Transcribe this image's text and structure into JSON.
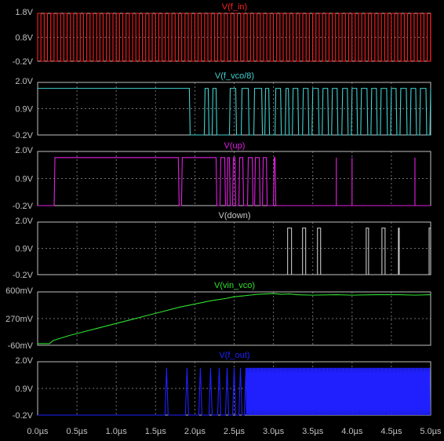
{
  "chart_data": [
    {
      "type": "line",
      "trace": "V(f_in)",
      "color": "#ff2020",
      "yticks": [
        "1.8V",
        "0.8V",
        "-0.2V"
      ],
      "ylim": [
        -0.2,
        1.8
      ],
      "waveform": "square",
      "low": -0.2,
      "high": 1.8,
      "period_us": 0.0833,
      "duty": 0.5,
      "x_range_us": [
        0.0,
        5.0
      ]
    },
    {
      "type": "line",
      "trace": "V(f_vco/8)",
      "color": "#40d0d0",
      "yticks": [
        "2.0V",
        "0.9V",
        "-0.2V"
      ],
      "ylim": [
        -0.2,
        2.0
      ],
      "low": -0.2,
      "high": 1.75,
      "transitions_us": [
        [
          0.0,
          1.75
        ],
        [
          1.93,
          -0.2
        ],
        [
          2.12,
          1.75
        ],
        [
          2.17,
          -0.2
        ],
        [
          2.22,
          1.75
        ],
        [
          2.27,
          -0.2
        ],
        [
          2.44,
          1.75
        ],
        [
          2.52,
          -0.2
        ],
        [
          2.59,
          1.75
        ],
        [
          2.68,
          -0.2
        ],
        [
          2.75,
          1.75
        ],
        [
          2.85,
          -0.2
        ],
        [
          2.89,
          1.75
        ],
        [
          2.94,
          -0.2
        ],
        [
          3.02,
          1.75
        ],
        [
          3.09,
          -0.2
        ],
        [
          3.15,
          1.75
        ],
        [
          3.19,
          -0.2
        ],
        [
          3.24,
          1.75
        ],
        [
          3.31,
          -0.2
        ],
        [
          3.37,
          1.75
        ],
        [
          3.44,
          -0.2
        ],
        [
          3.49,
          1.75
        ],
        [
          3.57,
          -0.2
        ],
        [
          3.62,
          1.75
        ],
        [
          3.69,
          -0.2
        ],
        [
          3.74,
          1.75
        ],
        [
          3.81,
          -0.2
        ],
        [
          3.87,
          1.75
        ],
        [
          3.94,
          -0.2
        ],
        [
          3.99,
          1.75
        ],
        [
          4.06,
          -0.2
        ],
        [
          4.11,
          1.75
        ],
        [
          4.19,
          -0.2
        ],
        [
          4.24,
          1.75
        ],
        [
          4.31,
          -0.2
        ],
        [
          4.36,
          1.75
        ],
        [
          4.44,
          -0.2
        ],
        [
          4.49,
          1.75
        ],
        [
          4.56,
          -0.2
        ],
        [
          4.61,
          1.75
        ],
        [
          4.69,
          -0.2
        ],
        [
          4.74,
          1.75
        ],
        [
          4.81,
          -0.2
        ],
        [
          4.86,
          1.75
        ],
        [
          4.94,
          -0.2
        ],
        [
          4.99,
          1.75
        ]
      ]
    },
    {
      "type": "line",
      "trace": "V(up)",
      "color": "#e020e0",
      "yticks": [
        "2.0V",
        "0.9V",
        "-0.2V"
      ],
      "ylim": [
        -0.2,
        2.0
      ],
      "low": -0.2,
      "high": 1.75,
      "transitions_us": [
        [
          0.0,
          -0.2
        ],
        [
          0.21,
          1.75
        ],
        [
          1.79,
          -0.2
        ],
        [
          1.83,
          1.75
        ],
        [
          2.27,
          -0.2
        ],
        [
          2.32,
          1.75
        ],
        [
          2.38,
          -0.2
        ],
        [
          2.41,
          1.75
        ],
        [
          2.44,
          -0.2
        ],
        [
          2.48,
          1.75
        ],
        [
          2.51,
          -0.2
        ],
        [
          2.56,
          1.75
        ],
        [
          2.61,
          -0.2
        ],
        [
          2.67,
          1.75
        ],
        [
          2.73,
          -0.2
        ],
        [
          2.76,
          1.75
        ],
        [
          2.82,
          -0.2
        ],
        [
          2.86,
          1.75
        ],
        [
          2.91,
          -0.2
        ],
        [
          3.0,
          1.75
        ],
        [
          3.02,
          -0.2
        ]
      ],
      "spikes_us": [
        3.8,
        4.0,
        4.8
      ]
    },
    {
      "type": "line",
      "trace": "V(down)",
      "color": "#c8c8c8",
      "yticks": [
        "2.0V",
        "0.9V",
        "-0.2V"
      ],
      "ylim": [
        -0.2,
        2.0
      ],
      "low": -0.2,
      "high": 1.75,
      "pulses_us": [
        [
          3.18,
          3.23
        ],
        [
          3.37,
          3.41
        ],
        [
          3.56,
          3.6
        ],
        [
          4.18,
          4.21
        ],
        [
          4.38,
          4.42
        ],
        [
          4.59,
          4.6
        ],
        [
          4.98,
          5.0
        ]
      ]
    },
    {
      "type": "line",
      "trace": "V(vin_vco)",
      "color": "#30e030",
      "yticks": [
        "600mV",
        "270mV",
        "-60mV"
      ],
      "ylim": [
        -0.06,
        0.6
      ],
      "unit": "V",
      "x_us": [
        0.0,
        0.15,
        0.2,
        0.4,
        0.6,
        0.8,
        1.0,
        1.2,
        1.4,
        1.6,
        1.8,
        2.0,
        2.2,
        2.4,
        2.5,
        2.6,
        2.7,
        2.8,
        2.9,
        3.0,
        3.1,
        3.2,
        3.3,
        3.5,
        3.8,
        4.0,
        4.3,
        4.6,
        4.8,
        5.0
      ],
      "y": [
        -0.04,
        -0.04,
        0.0,
        0.06,
        0.11,
        0.16,
        0.21,
        0.26,
        0.31,
        0.36,
        0.41,
        0.45,
        0.49,
        0.52,
        0.54,
        0.55,
        0.56,
        0.57,
        0.575,
        0.58,
        0.57,
        0.575,
        0.565,
        0.56,
        0.565,
        0.56,
        0.565,
        0.565,
        0.56,
        0.565
      ]
    },
    {
      "type": "line",
      "trace": "V(f_out)",
      "color": "#2020ff",
      "yticks": [
        "2.0V",
        "0.9V",
        "-0.2V"
      ],
      "ylim": [
        -0.2,
        2.0
      ],
      "low": -0.2,
      "high": 1.75,
      "baseline_end_us": 1.62,
      "pulse_edges_us": [
        1.62,
        1.88,
        2.05,
        2.18,
        2.29,
        2.39,
        2.48,
        2.56,
        2.63
      ],
      "dense_start_us": 2.65,
      "dense_period_us": 0.0125
    }
  ],
  "xaxis": {
    "ticks": [
      "0.0µs",
      "0.5µs",
      "1.0µs",
      "1.5µs",
      "2.0µs",
      "2.5µs",
      "3.0µs",
      "3.5µs",
      "4.0µs",
      "4.5µs",
      "5.0µs"
    ],
    "range_us": [
      0.0,
      5.0
    ]
  },
  "colors": {
    "background": "#000000",
    "frame": "#c0c0c0",
    "grid": "#707070",
    "tick_text": "#c0c0c0"
  }
}
